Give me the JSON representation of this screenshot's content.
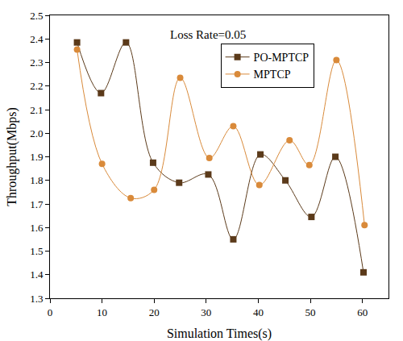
{
  "chart_data": {
    "type": "line",
    "x_label": "Simulation Times(s)",
    "y_label": "Throughput(Mbps)",
    "annotations": [
      "Loss Rate=0.05"
    ],
    "series": [
      {
        "name": "PO-MPTCP",
        "color": "#5b3a1a",
        "marker": "square",
        "line_style": "spline",
        "x": [
          5.2,
          9.8,
          14.6,
          19.8,
          24.8,
          30.4,
          35.2,
          40.4,
          45.2,
          50.2,
          54.8,
          60.2
        ],
        "values": [
          2.385,
          2.17,
          2.385,
          1.875,
          1.79,
          1.825,
          1.55,
          1.91,
          1.8,
          1.645,
          1.9,
          1.41
        ]
      },
      {
        "name": "MPTCP",
        "color": "#d98a3a",
        "marker": "circle",
        "line_style": "spline",
        "x": [
          5.2,
          10.0,
          15.5,
          20.0,
          25.0,
          30.6,
          35.2,
          40.2,
          46.0,
          49.8,
          55.0,
          60.4
        ],
        "values": [
          2.355,
          1.87,
          1.725,
          1.76,
          2.235,
          1.895,
          2.03,
          1.78,
          1.97,
          1.865,
          2.31,
          1.61
        ]
      }
    ],
    "xlim": [
      0,
      65
    ],
    "xticks": [
      0,
      10,
      20,
      30,
      40,
      50,
      60
    ],
    "ylim": [
      1.3,
      2.5
    ],
    "yticks": [
      1.3,
      1.4,
      1.5,
      1.6,
      1.7,
      1.8,
      1.9,
      {
        "value": 2,
        "label": "2.0"
      },
      2.1,
      2.2,
      2.3,
      2.4,
      2.5
    ],
    "grid": false,
    "legend": "top right"
  }
}
